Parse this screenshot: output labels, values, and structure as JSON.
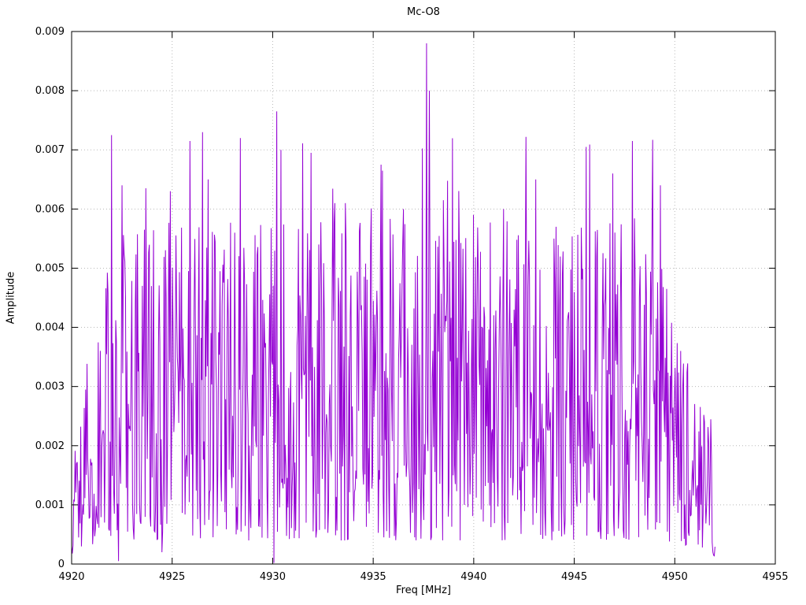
{
  "chart_data": {
    "type": "line",
    "title": "Mc-O8",
    "xlabel": "Freq [MHz]",
    "ylabel": "Amplitude",
    "xlim": [
      4920,
      4955
    ],
    "ylim": [
      0,
      0.009
    ],
    "x_ticks": [
      4920,
      4925,
      4930,
      4935,
      4940,
      4945,
      4950,
      4955
    ],
    "x_tick_labels": [
      "4920",
      "4925",
      "4930",
      "4935",
      "4940",
      "4945",
      "4950",
      "4955"
    ],
    "y_ticks": [
      0,
      0.001,
      0.002,
      0.003,
      0.004,
      0.005,
      0.006,
      0.007,
      0.008,
      0.009
    ],
    "y_tick_labels": [
      "0",
      "0.001",
      "0.002",
      "0.003",
      "0.004",
      "0.005",
      "0.006",
      "0.007",
      "0.008",
      "0.009"
    ],
    "grid": true,
    "grid_color": "#b8b8b8",
    "line_color": "#9400d3",
    "border_color": "#000000",
    "data_x_range": [
      4920,
      4952
    ],
    "num_points": 920,
    "gen": {
      "seed": 20847,
      "base_min": 0.0004,
      "base_max": 0.0058,
      "shape": 1.4,
      "tall_prob": 0.015,
      "tall_min": 0.0053,
      "tall_span": 0.0019
    },
    "envelope": [
      [
        4920,
        0.28
      ],
      [
        4920.6,
        0.55
      ],
      [
        4921.5,
        0.92
      ],
      [
        4922,
        1.0
      ],
      [
        4949,
        1.0
      ],
      [
        4950,
        0.78
      ],
      [
        4951,
        0.55
      ],
      [
        4951.6,
        0.42
      ],
      [
        4952,
        0.3
      ]
    ],
    "notable_peaks": [
      {
        "x": 4922.0,
        "y": 0.00725
      },
      {
        "x": 4922.5,
        "y": 0.0064
      },
      {
        "x": 4923.7,
        "y": 0.00635
      },
      {
        "x": 4924.9,
        "y": 0.0063
      },
      {
        "x": 4925.9,
        "y": 0.00715
      },
      {
        "x": 4926.5,
        "y": 0.0073
      },
      {
        "x": 4926.8,
        "y": 0.0065
      },
      {
        "x": 4928.4,
        "y": 0.0072
      },
      {
        "x": 4930.2,
        "y": 0.00765
      },
      {
        "x": 4930.4,
        "y": 0.007
      },
      {
        "x": 4931.9,
        "y": 0.00695
      },
      {
        "x": 4933.1,
        "y": 0.0061
      },
      {
        "x": 4933.6,
        "y": 0.0061
      },
      {
        "x": 4935.4,
        "y": 0.00675
      },
      {
        "x": 4936.5,
        "y": 0.006
      },
      {
        "x": 4937.65,
        "y": 0.0088
      },
      {
        "x": 4937.8,
        "y": 0.008
      },
      {
        "x": 4938.5,
        "y": 0.00615
      },
      {
        "x": 4940.0,
        "y": 0.0059
      },
      {
        "x": 4941.5,
        "y": 0.006
      },
      {
        "x": 4942.6,
        "y": 0.00722
      },
      {
        "x": 4943.1,
        "y": 0.0065
      },
      {
        "x": 4944.0,
        "y": 0.0055
      },
      {
        "x": 4945.6,
        "y": 0.00705
      },
      {
        "x": 4946.9,
        "y": 0.0066
      },
      {
        "x": 4947.9,
        "y": 0.00715
      },
      {
        "x": 4948.9,
        "y": 0.00717
      },
      {
        "x": 4949.3,
        "y": 0.0064
      }
    ],
    "notable_dips": [
      {
        "x": 4922.35,
        "y": 5e-05
      },
      {
        "x": 4924.5,
        "y": 0.0002
      },
      {
        "x": 4928.8,
        "y": 0.0004
      },
      {
        "x": 4930.05,
        "y": 2e-05
      },
      {
        "x": 4933.4,
        "y": 0.0004
      },
      {
        "x": 4944.5,
        "y": 0.0005
      },
      {
        "x": 4951.9,
        "y": 0.0002
      }
    ]
  }
}
